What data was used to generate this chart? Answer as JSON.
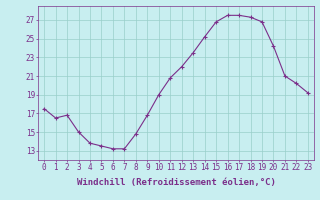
{
  "x": [
    0,
    1,
    2,
    3,
    4,
    5,
    6,
    7,
    8,
    9,
    10,
    11,
    12,
    13,
    14,
    15,
    16,
    17,
    18,
    19,
    20,
    21,
    22,
    23
  ],
  "y": [
    17.5,
    16.5,
    16.8,
    15.0,
    13.8,
    13.5,
    13.2,
    13.2,
    14.8,
    16.8,
    19.0,
    20.8,
    22.0,
    23.5,
    25.2,
    26.8,
    27.5,
    27.5,
    27.3,
    26.8,
    24.2,
    21.0,
    20.2,
    19.2
  ],
  "line_color": "#7b2f8a",
  "marker": "+",
  "marker_size": 3,
  "line_width": 0.8,
  "bg_color": "#c8eef0",
  "grid_color": "#9acfca",
  "xlabel": "Windchill (Refroidissement éolien,°C)",
  "xlabel_fontsize": 6.5,
  "xtick_labels": [
    "0",
    "1",
    "2",
    "3",
    "4",
    "5",
    "6",
    "7",
    "8",
    "9",
    "10",
    "11",
    "12",
    "13",
    "14",
    "15",
    "16",
    "17",
    "18",
    "19",
    "20",
    "21",
    "22",
    "23"
  ],
  "ytick_values": [
    13,
    15,
    17,
    19,
    21,
    23,
    25,
    27
  ],
  "ylim": [
    12.0,
    28.5
  ],
  "xlim": [
    -0.5,
    23.5
  ],
  "tick_color": "#7b2f8a",
  "tick_fontsize": 5.5,
  "spine_color": "#7b2f8a"
}
